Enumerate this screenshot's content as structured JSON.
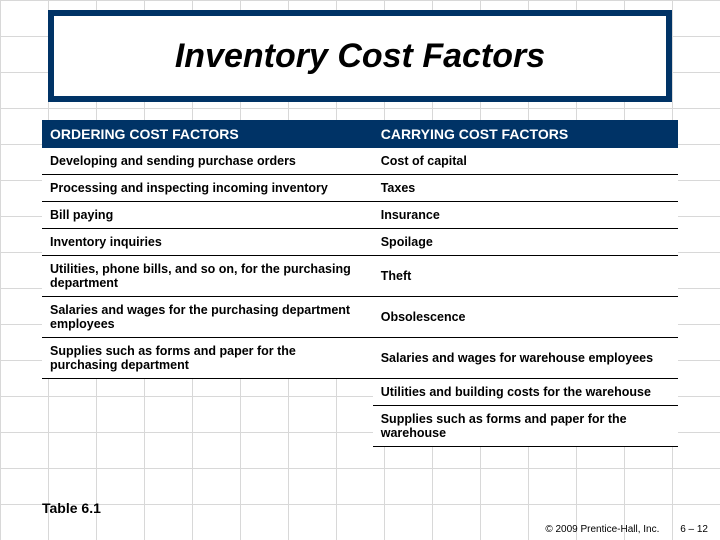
{
  "title": "Inventory Cost Factors",
  "header_left": "ORDERING COST FACTORS",
  "header_right": "CARRYING COST FACTORS",
  "rows": [
    {
      "left": "Developing and sending purchase orders",
      "right": "Cost of capital"
    },
    {
      "left": "Processing and inspecting incoming inventory",
      "right": "Taxes"
    },
    {
      "left": "Bill paying",
      "right": "Insurance"
    },
    {
      "left": "Inventory inquiries",
      "right": "Spoilage"
    },
    {
      "left": "Utilities, phone bills, and so on, for the purchasing department",
      "right": "Theft"
    },
    {
      "left": "Salaries and wages for the purchasing department employees",
      "right": "Obsolescence"
    },
    {
      "left": "Supplies such as forms and paper for the purchasing department",
      "right": "Salaries and wages for warehouse employees"
    },
    {
      "left": "",
      "right": "Utilities and building costs for the warehouse"
    },
    {
      "left": "",
      "right": "Supplies such as forms and paper for the warehouse"
    }
  ],
  "caption": "Table 6.1",
  "copyright": "© 2009 Prentice-Hall, Inc.",
  "page": "6 – 12",
  "colors": {
    "title_bg": "#003366",
    "header_bg": "#003366",
    "grid": "#d8d8d8",
    "text": "#000000"
  }
}
